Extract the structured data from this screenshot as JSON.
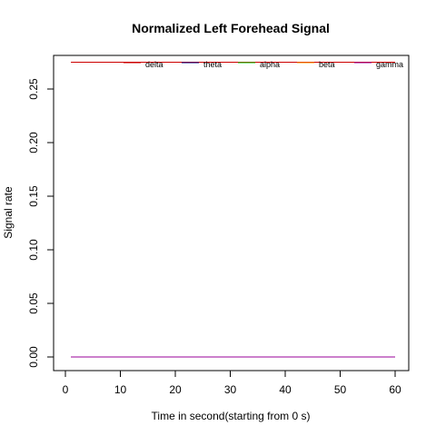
{
  "chart_data": {
    "type": "line",
    "title": "Normalized Left Forehead Signal",
    "xlabel": "Time in second(starting from 0 s)",
    "ylabel": "Signal rate",
    "xlim": [
      0,
      60
    ],
    "ylim": [
      0,
      0.275
    ],
    "x_ticks": [
      "0",
      "10",
      "20",
      "30",
      "40",
      "50",
      "60"
    ],
    "y_ticks": [
      "0.00",
      "0.05",
      "0.10",
      "0.15",
      "0.20",
      "0.25"
    ],
    "grid": false,
    "legend_position": "top-right",
    "series": [
      {
        "name": "delta",
        "color": "#cc0000",
        "x": [
          1,
          60
        ],
        "y": [
          0.275,
          0.275
        ]
      },
      {
        "name": "theta",
        "color": "#000080",
        "x": [
          1,
          60
        ],
        "y": [
          0.0,
          0.0
        ]
      },
      {
        "name": "alpha",
        "color": "#00cc00",
        "x": [
          1,
          60
        ],
        "y": [
          0.0,
          0.0
        ]
      },
      {
        "name": "beta",
        "color": "#ff9900",
        "x": [
          1,
          60
        ],
        "y": [
          0.0,
          0.0
        ]
      },
      {
        "name": "gamma",
        "color": "#990099",
        "x": [
          1,
          60
        ],
        "y": [
          0.0,
          0.0
        ]
      }
    ]
  }
}
